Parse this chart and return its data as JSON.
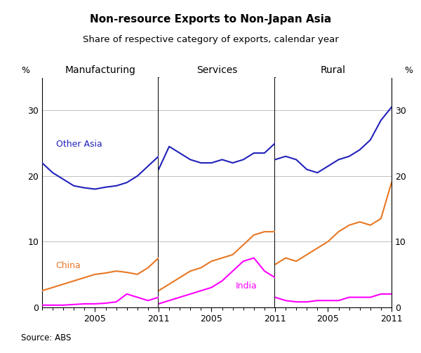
{
  "title": "Non-resource Exports to Non-Japan Asia",
  "subtitle": "Share of respective category of exports, calendar year",
  "source": "Source: ABS",
  "panel_labels": [
    "Manufacturing",
    "Services",
    "Rural"
  ],
  "ylabel_left": "%",
  "ylabel_right": "%",
  "ylim": [
    0,
    35
  ],
  "yticks": [
    0,
    10,
    20,
    30
  ],
  "ytick_labels": [
    "0",
    "10",
    "20",
    "30"
  ],
  "colors": {
    "other_asia": "#2222bb",
    "china": "#e87722",
    "india": "#ff00ff"
  },
  "manufacturing": {
    "years": [
      2000,
      2001,
      2002,
      2003,
      2004,
      2005,
      2006,
      2007,
      2008,
      2009,
      2010,
      2011
    ],
    "other_asia": [
      22.0,
      20.5,
      19.5,
      18.5,
      18.2,
      18.0,
      18.3,
      18.5,
      19.0,
      20.0,
      21.5,
      23.0
    ],
    "china": [
      2.5,
      3.0,
      3.5,
      4.0,
      4.5,
      5.0,
      5.2,
      5.5,
      5.3,
      5.0,
      6.0,
      7.5
    ],
    "india": [
      0.3,
      0.3,
      0.3,
      0.4,
      0.5,
      0.5,
      0.6,
      0.8,
      2.0,
      1.5,
      1.0,
      1.5
    ]
  },
  "services": {
    "years": [
      2000,
      2001,
      2002,
      2003,
      2004,
      2005,
      2006,
      2007,
      2008,
      2009,
      2010,
      2011
    ],
    "other_asia": [
      21.0,
      24.5,
      23.5,
      22.5,
      22.0,
      22.0,
      22.5,
      22.0,
      22.5,
      23.5,
      23.5,
      25.0
    ],
    "china": [
      2.5,
      3.5,
      4.5,
      5.5,
      6.0,
      7.0,
      7.5,
      8.0,
      9.5,
      11.0,
      11.5,
      11.5
    ],
    "india": [
      0.5,
      1.0,
      1.5,
      2.0,
      2.5,
      3.0,
      4.0,
      5.5,
      7.0,
      7.5,
      5.5,
      4.5
    ]
  },
  "rural": {
    "years": [
      2000,
      2001,
      2002,
      2003,
      2004,
      2005,
      2006,
      2007,
      2008,
      2009,
      2010,
      2011
    ],
    "other_asia": [
      22.5,
      23.0,
      22.5,
      21.0,
      20.5,
      21.5,
      22.5,
      23.0,
      24.0,
      25.5,
      28.5,
      30.5
    ],
    "china": [
      6.5,
      7.5,
      7.0,
      8.0,
      9.0,
      10.0,
      11.5,
      12.5,
      13.0,
      12.5,
      13.5,
      19.0
    ],
    "india": [
      1.5,
      1.0,
      0.8,
      0.8,
      1.0,
      1.0,
      1.0,
      1.5,
      1.5,
      1.5,
      2.0,
      2.0
    ]
  },
  "label_positions": {
    "mfg_other_asia": [
      2001.2,
      24.5
    ],
    "mfg_china": [
      2001.2,
      5.8
    ],
    "svc_india": [
      2007.2,
      2.8
    ],
    "rural_india_label": null
  }
}
